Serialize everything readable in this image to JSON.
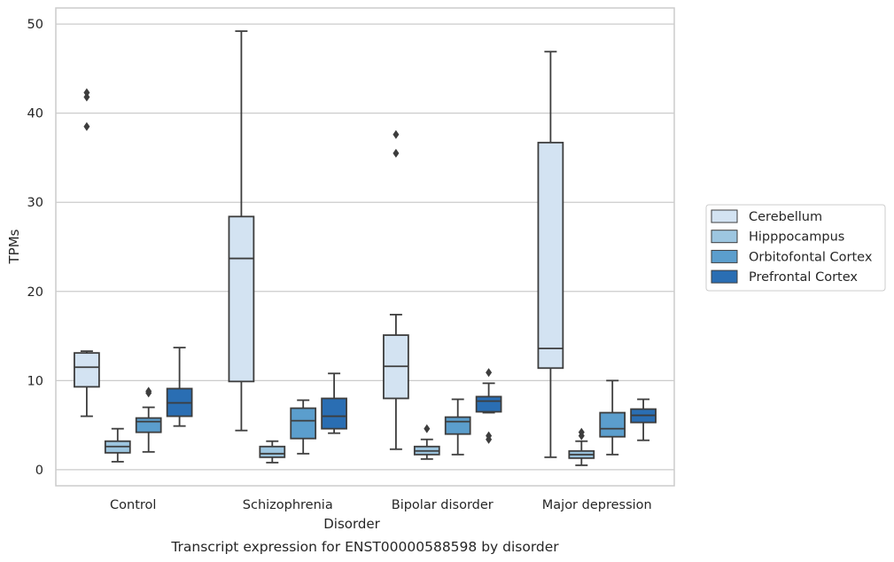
{
  "chart_data": {
    "type": "box",
    "caption": "Transcript expression for ENST00000588598 by disorder",
    "xlabel": "Disorder",
    "ylabel": "TPMs",
    "ylim": [
      -1.8,
      51.8
    ],
    "yticks": [
      0,
      10,
      20,
      30,
      40,
      50
    ],
    "grid": true,
    "legend_position": "right",
    "categories": [
      "Control",
      "Schizophrenia",
      "Bipolar disorder",
      "Major depression"
    ],
    "series": [
      {
        "name": "Cerebellum",
        "color": "#d3e3f2",
        "boxes": [
          {
            "whislo": 6.0,
            "q1": 9.3,
            "med": 11.5,
            "q3": 13.1,
            "whishi": 13.3,
            "fliers": [
              38.5,
              41.8,
              42.3
            ]
          },
          {
            "whislo": 4.4,
            "q1": 9.9,
            "med": 23.7,
            "q3": 28.4,
            "whishi": 49.2,
            "fliers": []
          },
          {
            "whislo": 2.3,
            "q1": 8.0,
            "med": 11.6,
            "q3": 15.1,
            "whishi": 17.4,
            "fliers": [
              35.5,
              37.6
            ]
          },
          {
            "whislo": 1.4,
            "q1": 11.4,
            "med": 13.6,
            "q3": 36.7,
            "whishi": 46.9,
            "fliers": []
          }
        ]
      },
      {
        "name": "Hipppocampus",
        "color": "#9dc6e0",
        "boxes": [
          {
            "whislo": 0.9,
            "q1": 1.9,
            "med": 2.6,
            "q3": 3.2,
            "whishi": 4.6,
            "fliers": []
          },
          {
            "whislo": 0.8,
            "q1": 1.4,
            "med": 1.8,
            "q3": 2.6,
            "whishi": 3.2,
            "fliers": []
          },
          {
            "whislo": 1.2,
            "q1": 1.7,
            "med": 2.1,
            "q3": 2.6,
            "whishi": 3.4,
            "fliers": [
              4.6
            ]
          },
          {
            "whislo": 0.5,
            "q1": 1.3,
            "med": 1.7,
            "q3": 2.1,
            "whishi": 3.2,
            "fliers": [
              3.8,
              4.2
            ]
          }
        ]
      },
      {
        "name": "Orbitofontal Cortex",
        "color": "#5b9ecd",
        "boxes": [
          {
            "whislo": 2.0,
            "q1": 4.2,
            "med": 5.4,
            "q3": 5.8,
            "whishi": 7.0,
            "fliers": [
              8.6,
              8.8
            ]
          },
          {
            "whislo": 1.8,
            "q1": 3.5,
            "med": 5.5,
            "q3": 6.9,
            "whishi": 7.8,
            "fliers": []
          },
          {
            "whislo": 1.7,
            "q1": 4.0,
            "med": 5.4,
            "q3": 5.9,
            "whishi": 7.9,
            "fliers": []
          },
          {
            "whislo": 1.7,
            "q1": 3.7,
            "med": 4.6,
            "q3": 6.4,
            "whishi": 10.0,
            "fliers": []
          }
        ]
      },
      {
        "name": "Prefrontal Cortex",
        "color": "#2a6eb3",
        "boxes": [
          {
            "whislo": 4.9,
            "q1": 6.0,
            "med": 7.5,
            "q3": 9.1,
            "whishi": 13.7,
            "fliers": []
          },
          {
            "whislo": 4.1,
            "q1": 4.6,
            "med": 6.0,
            "q3": 8.0,
            "whishi": 10.8,
            "fliers": []
          },
          {
            "whislo": 6.4,
            "q1": 6.5,
            "med": 7.7,
            "q3": 8.2,
            "whishi": 9.7,
            "fliers": [
              3.4,
              3.8,
              10.9
            ]
          },
          {
            "whislo": 3.3,
            "q1": 5.3,
            "med": 6.1,
            "q3": 6.8,
            "whishi": 7.9,
            "fliers": []
          }
        ]
      }
    ]
  }
}
